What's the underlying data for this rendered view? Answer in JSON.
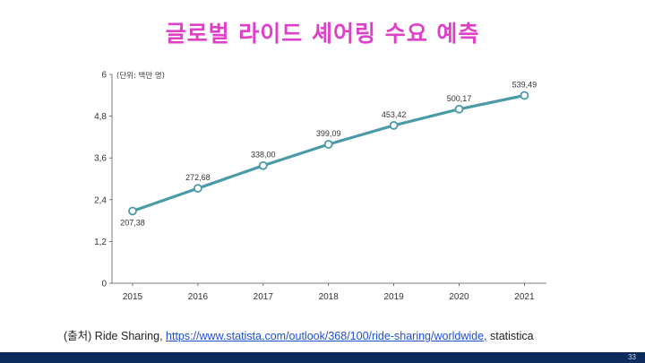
{
  "slide": {
    "title": "글로벌 라이드 셰어링 수요 예측",
    "page_number": "33"
  },
  "source": {
    "prefix": "(출처) Ride Sharing, ",
    "link": "https://www.statista.com/outlook/368/100/ride-sharing/worldwide,",
    "suffix": " statistica"
  },
  "chart_data": {
    "type": "line",
    "title": "",
    "unit_label": "(단위: 백만 명)",
    "xlabel": "",
    "ylabel": "",
    "categories": [
      "2015",
      "2016",
      "2017",
      "2018",
      "2019",
      "2020",
      "2021"
    ],
    "values": [
      2.0738,
      2.7268,
      3.38,
      3.9909,
      4.5342,
      5.0017,
      5.3949
    ],
    "value_labels": [
      "207,38",
      "272,68",
      "338,00",
      "399,09",
      "453,42",
      "500,17",
      "539,49"
    ],
    "y_ticks": [
      0,
      1.2,
      2.4,
      3.6,
      4.8,
      6
    ],
    "y_tick_labels": [
      "0",
      "1,2",
      "2,4",
      "3,6",
      "4,8",
      "6"
    ],
    "ylim": [
      0,
      6
    ],
    "grid": false,
    "line_color": "#4a9aaa"
  }
}
